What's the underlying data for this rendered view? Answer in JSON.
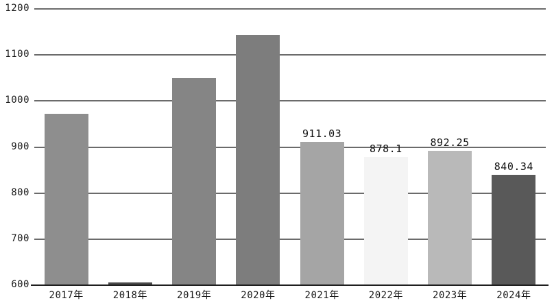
{
  "chart_data": {
    "type": "bar",
    "title": "",
    "xlabel": "",
    "ylabel": "",
    "categories": [
      "2017年",
      "2018年",
      "2019年",
      "2020年",
      "2021年",
      "2022年",
      "2023年",
      "2024年"
    ],
    "values": [
      972,
      606,
      1049,
      1143,
      911.03,
      878.1,
      892.25,
      840.34
    ],
    "data_labels": [
      "",
      "",
      "",
      "",
      "911.03",
      "878.1",
      "892.25",
      "840.34"
    ],
    "bar_colors": [
      "#8e8e8e",
      "#4a4a4a",
      "#858585",
      "#7d7d7d",
      "#a5a5a5",
      "#f4f4f4",
      "#b9b9b9",
      "#595959"
    ],
    "y_ticks": [
      600,
      700,
      800,
      900,
      1000,
      1100,
      1200
    ],
    "ylim": [
      600,
      1200
    ],
    "grid": true,
    "legend": false,
    "gridline_color": "#6b6b6b",
    "baseline_color": "#1f1f1f",
    "background_color": "#ffffff"
  }
}
